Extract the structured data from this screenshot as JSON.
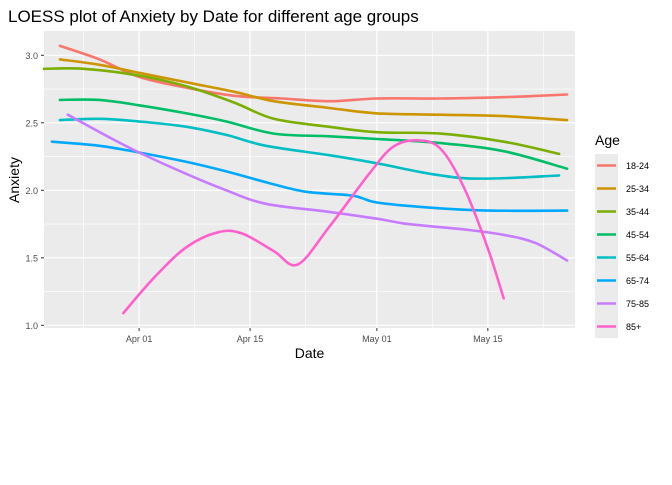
{
  "chart_data": {
    "type": "line",
    "title": "LOESS plot of Anxiety by Date for different age groups",
    "xlabel": "Date",
    "ylabel": "Anxiety",
    "x_domain": [
      "2020-03-20",
      "2020-05-26"
    ],
    "ylim": [
      0.98,
      3.18
    ],
    "x_ticks": [
      {
        "date": "2020-04-01",
        "label": "Apr 01"
      },
      {
        "date": "2020-04-15",
        "label": "Apr 15"
      },
      {
        "date": "2020-05-01",
        "label": "May 01"
      },
      {
        "date": "2020-05-15",
        "label": "May 15"
      }
    ],
    "x_minor_ticks": [
      "2020-03-25",
      "2020-04-08",
      "2020-04-22",
      "2020-05-08",
      "2020-05-22"
    ],
    "y_ticks": [
      1.0,
      1.5,
      2.0,
      2.5,
      3.0
    ],
    "y_tick_labels": [
      "1.0",
      "1.5",
      "2.0",
      "2.5",
      "3.0"
    ],
    "grid": true,
    "legend": {
      "title": "Age",
      "position": "right"
    },
    "series": [
      {
        "name": "18-24",
        "color": "#F8766D",
        "points": [
          [
            "2020-03-22",
            3.07
          ],
          [
            "2020-03-27",
            2.97
          ],
          [
            "2020-04-01",
            2.84
          ],
          [
            "2020-04-07",
            2.76
          ],
          [
            "2020-04-13",
            2.7
          ],
          [
            "2020-04-19",
            2.68
          ],
          [
            "2020-04-25",
            2.66
          ],
          [
            "2020-05-01",
            2.68
          ],
          [
            "2020-05-09",
            2.68
          ],
          [
            "2020-05-17",
            2.69
          ],
          [
            "2020-05-25",
            2.71
          ]
        ]
      },
      {
        "name": "25-34",
        "color": "#CD9600",
        "points": [
          [
            "2020-03-22",
            2.97
          ],
          [
            "2020-03-27",
            2.93
          ],
          [
            "2020-04-01",
            2.87
          ],
          [
            "2020-04-07",
            2.8
          ],
          [
            "2020-04-13",
            2.73
          ],
          [
            "2020-04-18",
            2.66
          ],
          [
            "2020-04-25",
            2.61
          ],
          [
            "2020-05-01",
            2.57
          ],
          [
            "2020-05-09",
            2.56
          ],
          [
            "2020-05-17",
            2.55
          ],
          [
            "2020-05-25",
            2.52
          ]
        ]
      },
      {
        "name": "35-44",
        "color": "#7CAE00",
        "points": [
          [
            "2020-03-20",
            2.9
          ],
          [
            "2020-03-25",
            2.9
          ],
          [
            "2020-04-01",
            2.85
          ],
          [
            "2020-04-07",
            2.77
          ],
          [
            "2020-04-13",
            2.65
          ],
          [
            "2020-04-18",
            2.53
          ],
          [
            "2020-04-25",
            2.47
          ],
          [
            "2020-05-01",
            2.43
          ],
          [
            "2020-05-09",
            2.42
          ],
          [
            "2020-05-17",
            2.36
          ],
          [
            "2020-05-24",
            2.27
          ]
        ]
      },
      {
        "name": "45-54",
        "color": "#00BE67",
        "points": [
          [
            "2020-03-22",
            2.67
          ],
          [
            "2020-03-27",
            2.67
          ],
          [
            "2020-04-01",
            2.63
          ],
          [
            "2020-04-07",
            2.57
          ],
          [
            "2020-04-12",
            2.51
          ],
          [
            "2020-04-18",
            2.42
          ],
          [
            "2020-04-25",
            2.4
          ],
          [
            "2020-05-01",
            2.38
          ],
          [
            "2020-05-09",
            2.35
          ],
          [
            "2020-05-17",
            2.29
          ],
          [
            "2020-05-25",
            2.16
          ]
        ]
      },
      {
        "name": "55-64",
        "color": "#00BFC4",
        "points": [
          [
            "2020-03-22",
            2.52
          ],
          [
            "2020-03-27",
            2.53
          ],
          [
            "2020-04-01",
            2.51
          ],
          [
            "2020-04-07",
            2.47
          ],
          [
            "2020-04-12",
            2.41
          ],
          [
            "2020-04-17",
            2.33
          ],
          [
            "2020-04-25",
            2.26
          ],
          [
            "2020-05-01",
            2.2
          ],
          [
            "2020-05-07",
            2.13
          ],
          [
            "2020-05-12",
            2.09
          ],
          [
            "2020-05-17",
            2.09
          ],
          [
            "2020-05-24",
            2.11
          ]
        ]
      },
      {
        "name": "65-74",
        "color": "#00A9FF",
        "points": [
          [
            "2020-03-21",
            2.36
          ],
          [
            "2020-03-27",
            2.33
          ],
          [
            "2020-04-01",
            2.28
          ],
          [
            "2020-04-07",
            2.21
          ],
          [
            "2020-04-12",
            2.14
          ],
          [
            "2020-04-17",
            2.06
          ],
          [
            "2020-04-22",
            1.99
          ],
          [
            "2020-04-28",
            1.96
          ],
          [
            "2020-05-01",
            1.91
          ],
          [
            "2020-05-08",
            1.87
          ],
          [
            "2020-05-15",
            1.85
          ],
          [
            "2020-05-25",
            1.85
          ]
        ]
      },
      {
        "name": "75-85",
        "color": "#C77CFF",
        "points": [
          [
            "2020-03-23",
            2.56
          ],
          [
            "2020-03-28",
            2.4
          ],
          [
            "2020-04-01",
            2.28
          ],
          [
            "2020-04-07",
            2.12
          ],
          [
            "2020-04-12",
            2.0
          ],
          [
            "2020-04-17",
            1.9
          ],
          [
            "2020-04-25",
            1.84
          ],
          [
            "2020-05-01",
            1.79
          ],
          [
            "2020-05-05",
            1.75
          ],
          [
            "2020-05-12",
            1.71
          ],
          [
            "2020-05-17",
            1.67
          ],
          [
            "2020-05-21",
            1.61
          ],
          [
            "2020-05-25",
            1.48
          ]
        ]
      },
      {
        "name": "85+",
        "color": "#FF61CC",
        "points": [
          [
            "2020-03-30",
            1.09
          ],
          [
            "2020-04-03",
            1.36
          ],
          [
            "2020-04-07",
            1.58
          ],
          [
            "2020-04-11",
            1.69
          ],
          [
            "2020-04-14",
            1.68
          ],
          [
            "2020-04-18",
            1.55
          ],
          [
            "2020-04-21",
            1.45
          ],
          [
            "2020-04-25",
            1.73
          ],
          [
            "2020-04-30",
            2.12
          ],
          [
            "2020-05-03",
            2.32
          ],
          [
            "2020-05-06",
            2.37
          ],
          [
            "2020-05-09",
            2.31
          ],
          [
            "2020-05-12",
            2.02
          ],
          [
            "2020-05-15",
            1.57
          ],
          [
            "2020-05-17",
            1.2
          ]
        ]
      }
    ]
  }
}
